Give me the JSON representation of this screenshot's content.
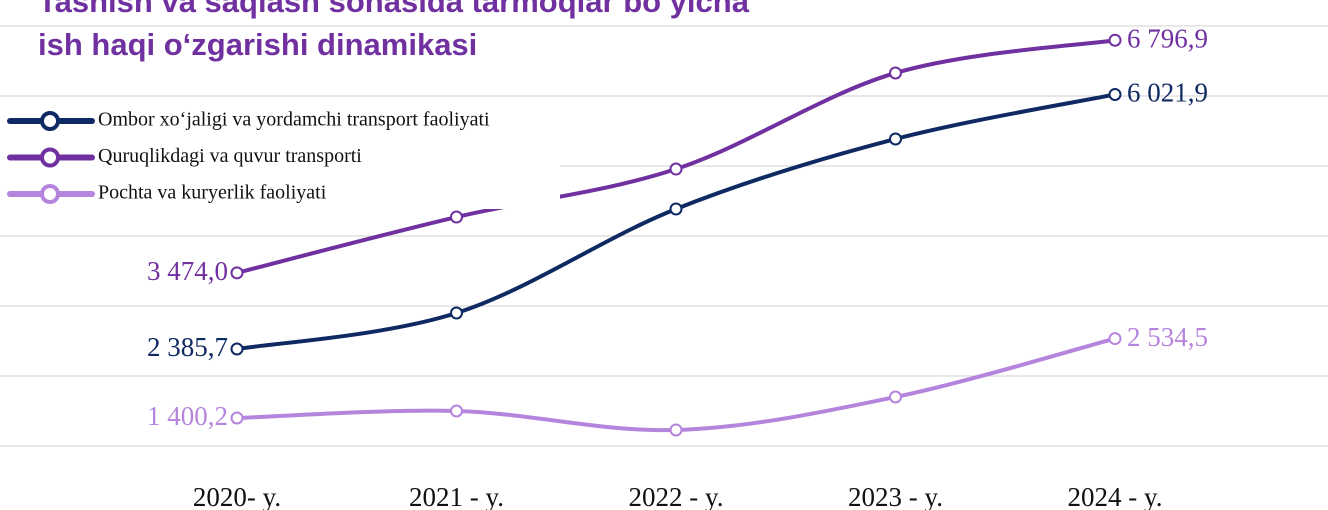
{
  "chart_data": {
    "type": "line",
    "title": [
      "Tashish va saqlash sohasida tarmoqlar  bo‘yicha",
      "ish haqi o‘zgarishi dinamikasi"
    ],
    "categories": [
      "2020- y.",
      "2021 - y.",
      "2022 - y.",
      "2023 - y.",
      "2024 - y."
    ],
    "series": [
      {
        "name": "Ombor xo‘jaligi va yordamchi transport faoliyati",
        "color": "#0f2a62",
        "values": [
          2385.7,
          2900,
          4386,
          5386,
          6021.9
        ],
        "value_labels": [
          "2 385,7",
          null,
          null,
          null,
          "6 021,9"
        ]
      },
      {
        "name": "Quruqlikdagi va quvur  transporti",
        "color": "#7030a0",
        "values": [
          3474.0,
          4271,
          4957,
          6329,
          6796.9
        ],
        "value_labels": [
          "3 474,0",
          null,
          null,
          null,
          "6 796,9"
        ]
      },
      {
        "name": "Pochta va kuryerlik faoliyati",
        "color": "#b584dc",
        "values": [
          1400.2,
          1500,
          1229,
          1700,
          2534.5
        ],
        "value_labels": [
          "1 400,2",
          null,
          null,
          null,
          "2 534,5"
        ]
      }
    ],
    "ylim": [
      1000,
      7000
    ],
    "yticks": [
      1000,
      2000,
      3000,
      4000,
      5000,
      6000,
      7000
    ],
    "grid": true,
    "legend": "upper left"
  }
}
